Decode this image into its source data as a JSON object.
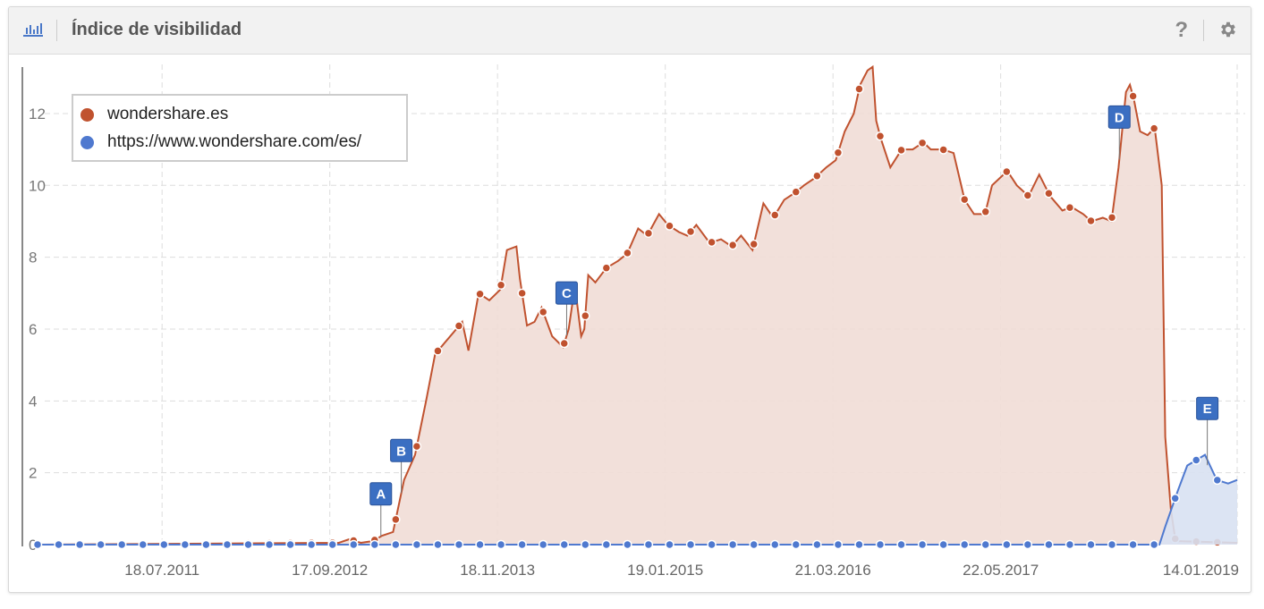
{
  "header": {
    "title": "Índice de visibilidad",
    "chart_icon": "bar-chart-icon",
    "help_icon": "question-icon",
    "settings_icon": "gear-icon"
  },
  "colors": {
    "series1": "#c0522f",
    "series1_fill": "#f1ddd6",
    "series2": "#4f79cf",
    "series2_fill": "#d8e1f2",
    "annotation": "#3b6fc2"
  },
  "chart_data": {
    "type": "area",
    "title": "",
    "xlabel": "",
    "ylabel": "",
    "ylim": [
      0,
      13
    ],
    "yticks": [
      0,
      2,
      4,
      6,
      8,
      10,
      12
    ],
    "xlim": [
      "2010-09-04",
      "2019-01-14"
    ],
    "xticks": [
      {
        "date": "2011-07-18",
        "label": "18.07.2011"
      },
      {
        "date": "2012-09-17",
        "label": "17.09.2012"
      },
      {
        "date": "2013-11-18",
        "label": "18.11.2013"
      },
      {
        "date": "2015-01-19",
        "label": "19.01.2015"
      },
      {
        "date": "2016-03-21",
        "label": "21.03.2016"
      },
      {
        "date": "2017-05-22",
        "label": "22.05.2017"
      },
      {
        "date": "2019-01-14",
        "label": "14.01.2019"
      }
    ],
    "grid": true,
    "legend_position": "top-left",
    "series": [
      {
        "name": "wondershare.es",
        "points": [
          [
            "2010-09-04",
            0
          ],
          [
            "2012-10-10",
            0.05
          ],
          [
            "2012-11-05",
            0.15
          ],
          [
            "2012-12-05",
            0.05
          ],
          [
            "2013-01-05",
            0.1
          ],
          [
            "2013-01-28",
            0.25
          ],
          [
            "2013-02-25",
            0.35
          ],
          [
            "2013-03-25",
            1.8
          ],
          [
            "2013-04-22",
            2.5
          ],
          [
            "2013-05-20",
            4.0
          ],
          [
            "2013-06-12",
            5.3
          ],
          [
            "2013-07-05",
            5.6
          ],
          [
            "2013-08-05",
            6.0
          ],
          [
            "2013-08-20",
            6.2
          ],
          [
            "2013-09-05",
            5.4
          ],
          [
            "2013-10-01",
            7.0
          ],
          [
            "2013-10-28",
            6.8
          ],
          [
            "2013-11-25",
            7.1
          ],
          [
            "2013-12-12",
            8.2
          ],
          [
            "2014-01-05",
            8.3
          ],
          [
            "2014-01-14",
            7.4
          ],
          [
            "2014-02-01",
            6.1
          ],
          [
            "2014-02-20",
            6.2
          ],
          [
            "2014-03-10",
            6.6
          ],
          [
            "2014-04-06",
            5.8
          ],
          [
            "2014-05-04",
            5.5
          ],
          [
            "2014-05-18",
            6.0
          ],
          [
            "2014-06-03",
            7.2
          ],
          [
            "2014-06-19",
            5.8
          ],
          [
            "2014-06-27",
            6.0
          ],
          [
            "2014-07-07",
            7.5
          ],
          [
            "2014-07-25",
            7.3
          ],
          [
            "2014-08-22",
            7.7
          ],
          [
            "2014-09-21",
            7.9
          ],
          [
            "2014-10-14",
            8.1
          ],
          [
            "2014-11-11",
            8.8
          ],
          [
            "2014-12-04",
            8.6
          ],
          [
            "2015-01-03",
            9.2
          ],
          [
            "2015-01-26",
            8.9
          ],
          [
            "2015-02-23",
            8.7
          ],
          [
            "2015-03-16",
            8.6
          ],
          [
            "2015-04-08",
            8.9
          ],
          [
            "2015-05-12",
            8.4
          ],
          [
            "2015-06-10",
            8.5
          ],
          [
            "2015-07-07",
            8.3
          ],
          [
            "2015-07-31",
            8.6
          ],
          [
            "2015-08-29",
            8.2
          ],
          [
            "2015-09-26",
            9.5
          ],
          [
            "2015-10-21",
            9.1
          ],
          [
            "2015-11-18",
            9.6
          ],
          [
            "2015-12-16",
            9.8
          ],
          [
            "2016-01-07",
            10.0
          ],
          [
            "2016-02-03",
            10.2
          ],
          [
            "2016-03-04",
            10.5
          ],
          [
            "2016-03-28",
            10.7
          ],
          [
            "2016-04-20",
            11.5
          ],
          [
            "2016-05-13",
            12.0
          ],
          [
            "2016-05-29",
            12.8
          ],
          [
            "2016-06-17",
            13.2
          ],
          [
            "2016-06-30",
            13.3
          ],
          [
            "2016-07-09",
            11.8
          ],
          [
            "2016-07-21",
            11.3
          ],
          [
            "2016-08-14",
            10.5
          ],
          [
            "2016-09-12",
            11.0
          ],
          [
            "2016-10-10",
            11.0
          ],
          [
            "2016-11-06",
            11.2
          ],
          [
            "2016-11-25",
            11.0
          ],
          [
            "2016-12-25",
            11.0
          ],
          [
            "2017-01-22",
            10.9
          ],
          [
            "2017-02-19",
            9.6
          ],
          [
            "2017-03-15",
            9.2
          ],
          [
            "2017-04-12",
            9.2
          ],
          [
            "2017-04-30",
            10.0
          ],
          [
            "2017-06-08",
            10.4
          ],
          [
            "2017-07-02",
            10.0
          ],
          [
            "2017-08-01",
            9.7
          ],
          [
            "2017-08-28",
            10.3
          ],
          [
            "2017-09-25",
            9.7
          ],
          [
            "2017-10-26",
            9.3
          ],
          [
            "2017-11-18",
            9.4
          ],
          [
            "2017-12-18",
            9.2
          ],
          [
            "2018-01-08",
            9.0
          ],
          [
            "2018-02-06",
            9.1
          ],
          [
            "2018-02-28",
            9.0
          ],
          [
            "2018-03-18",
            10.5
          ],
          [
            "2018-04-06",
            12.6
          ],
          [
            "2018-04-16",
            12.8
          ],
          [
            "2018-04-26",
            12.4
          ],
          [
            "2018-05-12",
            11.5
          ],
          [
            "2018-05-31",
            11.4
          ],
          [
            "2018-06-18",
            11.6
          ],
          [
            "2018-07-06",
            10.0
          ],
          [
            "2018-07-15",
            3.0
          ],
          [
            "2018-07-29",
            1.0
          ],
          [
            "2018-08-10",
            0.1
          ],
          [
            "2019-01-14",
            0.05
          ]
        ]
      },
      {
        "name": "https://www.wondershare.com/es/",
        "points": [
          [
            "2010-09-04",
            0
          ],
          [
            "2018-06-30",
            0
          ],
          [
            "2018-07-15",
            0.5
          ],
          [
            "2018-08-16",
            1.5
          ],
          [
            "2018-09-09",
            2.2
          ],
          [
            "2018-10-24",
            2.5
          ],
          [
            "2018-11-23",
            1.8
          ],
          [
            "2018-12-22",
            1.7
          ],
          [
            "2019-01-14",
            1.8
          ]
        ]
      }
    ],
    "annotations": [
      {
        "label": "A",
        "date": "2013-01-25"
      },
      {
        "label": "B",
        "date": "2013-03-18"
      },
      {
        "label": "C",
        "date": "2014-05-13"
      },
      {
        "label": "D",
        "date": "2018-03-20"
      },
      {
        "label": "E",
        "date": "2018-10-30"
      }
    ]
  }
}
